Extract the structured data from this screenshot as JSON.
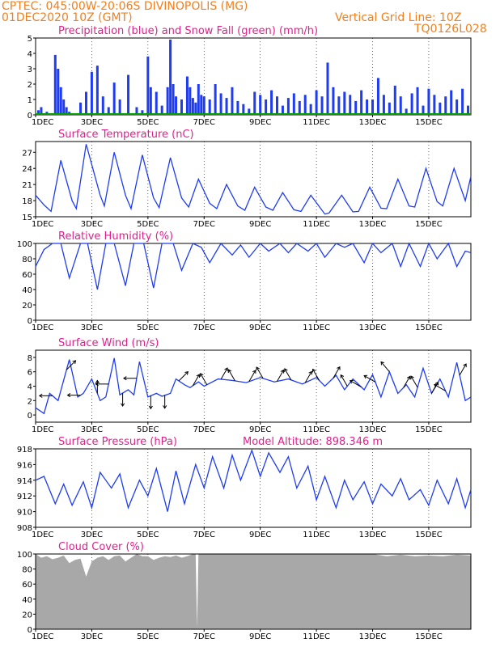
{
  "header": {
    "line1_left": "CPTEC:  045:00W-20:06S  DIVINOPOLIS (MG)",
    "line2_left": "01DEC2020 10Z (GMT)",
    "line2_right": "Vertical Grid Line: 10Z",
    "line3_right": "TQ0126L028",
    "color": "#f08020"
  },
  "x_axis": {
    "tick_labels": [
      "1DEC",
      "3DEC",
      "5DEC",
      "7DEC",
      "9DEC",
      "11DEC",
      "13DEC",
      "15DEC"
    ],
    "tick_days": [
      0,
      2,
      4,
      6,
      8,
      10,
      12,
      14
    ],
    "range_days": [
      0,
      15.5
    ]
  },
  "chart_data": [
    {
      "type": "bar",
      "title": "Precipitation (blue) and Snow Fall (green) (mm/h)",
      "ylim": [
        0,
        5
      ],
      "yticks": [
        "0",
        "1",
        "2",
        "3",
        "4",
        "5"
      ],
      "series": [
        {
          "name": "Precipitation",
          "color": "#1f3cf0",
          "x": [
            0.1,
            0.2,
            0.4,
            0.7,
            0.8,
            0.9,
            1.0,
            1.1,
            1.2,
            1.3,
            1.6,
            1.8,
            2.0,
            2.2,
            2.4,
            2.6,
            2.8,
            3.0,
            3.3,
            3.6,
            3.8,
            4.0,
            4.1,
            4.3,
            4.5,
            4.7,
            4.8,
            4.9,
            5.0,
            5.2,
            5.4,
            5.5,
            5.6,
            5.7,
            5.8,
            5.9,
            6.0,
            6.2,
            6.4,
            6.6,
            6.8,
            7.0,
            7.2,
            7.4,
            7.6,
            7.8,
            8.0,
            8.2,
            8.4,
            8.6,
            8.8,
            9.0,
            9.2,
            9.4,
            9.6,
            9.8,
            10.0,
            10.2,
            10.4,
            10.6,
            10.8,
            11.0,
            11.2,
            11.4,
            11.6,
            11.8,
            12.0,
            12.2,
            12.4,
            12.6,
            12.8,
            13.0,
            13.2,
            13.4,
            13.6,
            13.8,
            14.0,
            14.2,
            14.4,
            14.6,
            14.8,
            15.0,
            15.2,
            15.4
          ],
          "values": [
            0.3,
            0.5,
            0.2,
            3.9,
            3.0,
            1.8,
            1.0,
            0.5,
            0.2,
            0.1,
            0.8,
            1.5,
            2.8,
            3.2,
            1.2,
            0.5,
            2.1,
            1.0,
            2.6,
            0.5,
            0.3,
            3.8,
            1.8,
            1.5,
            0.6,
            1.8,
            4.9,
            2.0,
            1.2,
            1.0,
            2.5,
            1.8,
            1.1,
            0.8,
            2.0,
            1.3,
            1.2,
            1.0,
            2.0,
            1.4,
            1.1,
            1.8,
            0.9,
            0.7,
            0.4,
            1.5,
            1.3,
            1.0,
            1.6,
            1.2,
            0.6,
            1.1,
            1.4,
            0.9,
            1.3,
            0.7,
            1.6,
            1.2,
            3.4,
            1.8,
            1.2,
            1.5,
            1.3,
            0.9,
            1.6,
            1.0,
            1.0,
            2.4,
            1.3,
            0.8,
            1.9,
            1.2,
            0.4,
            1.4,
            1.8,
            0.6,
            1.7,
            1.3,
            0.8,
            1.2,
            1.6,
            1.0,
            1.7,
            0.6
          ]
        },
        {
          "name": "Snow Fall",
          "color": "#00a000",
          "values": [
            0
          ]
        }
      ]
    },
    {
      "type": "line",
      "title": "Surface Temperature (nC)",
      "ylim": [
        15,
        29
      ],
      "yticks": [
        "15",
        "18",
        "21",
        "24",
        "27"
      ],
      "series": [
        {
          "name": "",
          "color": "#1f3cf0",
          "x": [
            0,
            0.3,
            0.55,
            0.9,
            1.3,
            1.45,
            1.8,
            2.3,
            2.45,
            2.8,
            3.2,
            3.4,
            3.8,
            4.2,
            4.4,
            4.8,
            5.2,
            5.45,
            5.8,
            6.2,
            6.45,
            6.8,
            7.2,
            7.45,
            7.8,
            8.2,
            8.45,
            8.8,
            9.2,
            9.45,
            9.8,
            10.3,
            10.45,
            10.9,
            11.3,
            11.5,
            11.9,
            12.3,
            12.5,
            12.9,
            13.3,
            13.5,
            13.9,
            14.3,
            14.5,
            14.9,
            15.3,
            15.5
          ],
          "values": [
            19.0,
            17.2,
            16.0,
            25.5,
            18.0,
            16.5,
            28.5,
            19.0,
            17.0,
            27.0,
            19.0,
            16.5,
            26.5,
            18.5,
            16.7,
            26.0,
            18.5,
            16.8,
            22.0,
            17.5,
            16.5,
            21.0,
            17.0,
            16.2,
            20.5,
            16.8,
            16.2,
            19.5,
            16.3,
            16.0,
            19.0,
            15.5,
            15.7,
            19.0,
            15.9,
            16.0,
            20.5,
            16.6,
            16.5,
            22.0,
            17.0,
            16.8,
            24.0,
            17.8,
            17.0,
            24.0,
            18.0,
            22.5
          ]
        }
      ]
    },
    {
      "type": "line",
      "title": "Relative Humidity (%)",
      "ylim": [
        0,
        100
      ],
      "yticks": [
        "0",
        "20",
        "40",
        "60",
        "80",
        "100"
      ],
      "series": [
        {
          "name": "",
          "color": "#1f3cf0",
          "x": [
            0,
            0.3,
            0.6,
            0.9,
            1.2,
            1.6,
            1.85,
            2.2,
            2.5,
            2.8,
            3.2,
            3.5,
            3.85,
            4.2,
            4.5,
            4.9,
            5.2,
            5.6,
            5.9,
            6.2,
            6.6,
            7.0,
            7.3,
            7.6,
            8.0,
            8.3,
            8.7,
            9.0,
            9.3,
            9.7,
            10.0,
            10.3,
            10.7,
            11.0,
            11.3,
            11.7,
            12.0,
            12.3,
            12.7,
            13.0,
            13.3,
            13.7,
            14.0,
            14.3,
            14.7,
            15.0,
            15.3,
            15.5
          ],
          "values": [
            70,
            92,
            100,
            100,
            55,
            100,
            100,
            40,
            100,
            100,
            45,
            100,
            100,
            42,
            100,
            100,
            65,
            100,
            95,
            75,
            100,
            85,
            98,
            82,
            100,
            90,
            100,
            88,
            100,
            90,
            100,
            82,
            100,
            95,
            100,
            75,
            100,
            88,
            100,
            70,
            100,
            70,
            100,
            80,
            100,
            70,
            90,
            88
          ]
        }
      ]
    },
    {
      "type": "line",
      "title": "Surface Wind (m/s)",
      "ylim": [
        -1,
        9
      ],
      "yticks": [
        "0",
        "2",
        "4",
        "6",
        "8"
      ],
      "series": [
        {
          "name": "",
          "color": "#1f3cf0",
          "x": [
            0,
            0.3,
            0.5,
            0.8,
            1.2,
            1.5,
            1.7,
            2.0,
            2.3,
            2.5,
            2.8,
            3.0,
            3.3,
            3.5,
            3.7,
            4.0,
            4.3,
            4.5,
            4.8,
            5.0,
            5.3,
            5.5,
            5.8,
            6.0,
            6.5,
            7.0,
            7.5,
            8.0,
            8.5,
            9.0,
            9.5,
            10.0,
            10.3,
            10.7,
            11.0,
            11.3,
            11.7,
            12.0,
            12.3,
            12.6,
            12.9,
            13.2,
            13.5,
            13.8,
            14.1,
            14.4,
            14.7,
            15.0,
            15.3,
            15.5
          ],
          "values": [
            1.0,
            0.2,
            3.0,
            2.0,
            7.7,
            2.5,
            3.0,
            5.0,
            2.0,
            2.5,
            7.9,
            2.8,
            3.5,
            2.8,
            7.4,
            2.5,
            3.0,
            2.6,
            3.0,
            5.0,
            4.2,
            3.8,
            4.6,
            4.0,
            5.0,
            4.8,
            4.5,
            5.2,
            4.6,
            5.0,
            4.3,
            5.2,
            4.0,
            5.5,
            3.5,
            5.0,
            3.5,
            5.6,
            2.5,
            6.0,
            3.0,
            4.2,
            2.5,
            6.5,
            3.0,
            5.0,
            2.5,
            7.3,
            2.0,
            2.5
          ]
        }
      ],
      "arrows": {
        "color": "#000000",
        "x": [
          0.6,
          1.1,
          1.6,
          2.2,
          2.6,
          3.1,
          3.6,
          4.1,
          4.6,
          5.1,
          5.6,
          6.1,
          6.6,
          7.1,
          7.6,
          8.1,
          8.6,
          9.1,
          9.6,
          10.1,
          10.6,
          11.1,
          11.6,
          12.1,
          12.6,
          13.1,
          13.6,
          14.1,
          14.6,
          15.1
        ],
        "dir": [
          180,
          315,
          180,
          270,
          180,
          90,
          180,
          90,
          90,
          315,
          300,
          240,
          300,
          240,
          300,
          240,
          300,
          240,
          300,
          240,
          300,
          240,
          210,
          210,
          230,
          300,
          240,
          300,
          210,
          300
        ]
      }
    },
    {
      "type": "line",
      "title": "Surface Pressure (hPa)",
      "subtitle": "Model Altitude: 898.346  m",
      "ylim": [
        908,
        918
      ],
      "yticks": [
        "908",
        "910",
        "912",
        "914",
        "916",
        "918"
      ],
      "series": [
        {
          "name": "",
          "color": "#1f3cf0",
          "x": [
            0,
            0.3,
            0.7,
            1.0,
            1.3,
            1.7,
            2.0,
            2.3,
            2.7,
            3.0,
            3.3,
            3.7,
            4.0,
            4.3,
            4.7,
            5.0,
            5.3,
            5.7,
            6.0,
            6.3,
            6.7,
            7.0,
            7.3,
            7.7,
            8.0,
            8.3,
            8.7,
            9.0,
            9.3,
            9.7,
            10.0,
            10.3,
            10.7,
            11.0,
            11.3,
            11.7,
            12.0,
            12.3,
            12.7,
            13.0,
            13.3,
            13.7,
            14.0,
            14.3,
            14.7,
            15.0,
            15.3,
            15.5
          ],
          "values": [
            914.0,
            914.5,
            911.0,
            913.5,
            910.8,
            913.8,
            910.5,
            915.0,
            913.0,
            914.8,
            910.5,
            914.0,
            912.0,
            915.5,
            910.0,
            915.2,
            911.0,
            916.0,
            913.0,
            917.0,
            913.0,
            917.2,
            914.0,
            917.8,
            914.5,
            917.5,
            915.0,
            917.0,
            913.0,
            915.8,
            911.5,
            914.5,
            910.5,
            914.0,
            911.5,
            913.8,
            911.0,
            913.5,
            912.0,
            914.2,
            911.5,
            912.8,
            910.8,
            914.0,
            911.0,
            914.2,
            910.5,
            912.8
          ]
        }
      ]
    },
    {
      "type": "area",
      "title": "Cloud Cover (%)",
      "ylim": [
        0,
        100
      ],
      "yticks": [
        "0",
        "20",
        "40",
        "60",
        "80",
        "100"
      ],
      "series": [
        {
          "name": "",
          "color": "#a8a8a8",
          "x": [
            0,
            0.2,
            0.4,
            0.6,
            0.8,
            1.0,
            1.2,
            1.4,
            1.6,
            1.8,
            2.0,
            2.2,
            2.4,
            2.6,
            2.8,
            3.0,
            3.2,
            3.4,
            3.6,
            3.8,
            4.0,
            4.2,
            4.4,
            4.6,
            4.8,
            5.0,
            5.2,
            5.4,
            5.6,
            5.7,
            5.75,
            5.8,
            6.0,
            7.0,
            8.0,
            9.0,
            10.0,
            11.0,
            12.0,
            12.5,
            13.0,
            13.5,
            14.0,
            14.5,
            15.0,
            15.5
          ],
          "values": [
            100,
            95,
            97,
            93,
            95,
            98,
            88,
            92,
            94,
            70,
            90,
            95,
            97,
            92,
            97,
            98,
            90,
            95,
            100,
            97,
            97,
            92,
            95,
            97,
            96,
            98,
            95,
            97,
            100,
            100,
            2,
            100,
            100,
            100,
            100,
            100,
            100,
            100,
            100,
            97,
            99,
            97,
            98,
            97,
            99,
            98
          ]
        }
      ]
    }
  ]
}
